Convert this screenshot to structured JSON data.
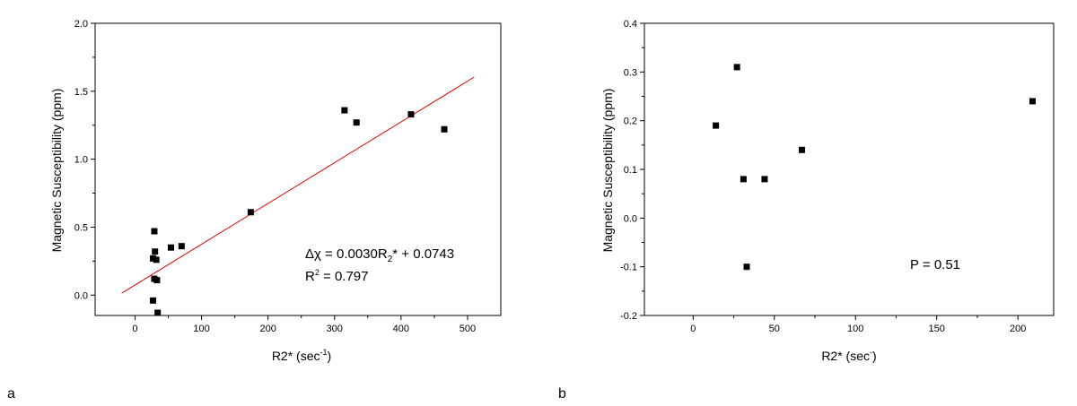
{
  "chart_data": [
    {
      "type": "scatter",
      "panel_label": "a",
      "xlabel_main": "R2* (sec",
      "xlabel_sup": "-1",
      "xlabel_end": ")",
      "ylabel": "Magnetic Susceptibility (ppm)",
      "xlim": [
        -60,
        550
      ],
      "ylim": [
        -0.15,
        2.0
      ],
      "xticks": [
        0,
        100,
        200,
        300,
        400,
        500
      ],
      "yticks": [
        0.0,
        0.5,
        1.0,
        1.5,
        2.0
      ],
      "ytick_labels": [
        "0.0",
        "0.5",
        "1.0",
        "1.5",
        "2.0"
      ],
      "points": [
        {
          "x": 29,
          "y": 0.47
        },
        {
          "x": 27,
          "y": 0.27
        },
        {
          "x": 30,
          "y": 0.32
        },
        {
          "x": 32,
          "y": 0.26
        },
        {
          "x": 29,
          "y": 0.12
        },
        {
          "x": 33,
          "y": 0.11
        },
        {
          "x": 27,
          "y": -0.04
        },
        {
          "x": 34,
          "y": -0.13
        },
        {
          "x": 54,
          "y": 0.35
        },
        {
          "x": 70,
          "y": 0.36
        },
        {
          "x": 174,
          "y": 0.61
        },
        {
          "x": 315,
          "y": 1.36
        },
        {
          "x": 333,
          "y": 1.27
        },
        {
          "x": 415,
          "y": 1.33
        },
        {
          "x": 465,
          "y": 1.22
        }
      ],
      "fit": {
        "slope": 0.003,
        "intercept": 0.0743,
        "x_range": [
          -20,
          510
        ],
        "color": "#e00000"
      },
      "equation_prefix": "Δχ = 0.0030R",
      "equation_sub": "2",
      "equation_suffix": "* + 0.0743",
      "r2_prefix": "R",
      "r2_sup": "2",
      "r2_value": " = 0.797"
    },
    {
      "type": "scatter",
      "panel_label": "b",
      "xlabel_main": "R2* (sec",
      "xlabel_sup": "-",
      "xlabel_end": ")",
      "ylabel": "Magnetic Susceptibility (ppm)",
      "xlim": [
        -30,
        222
      ],
      "ylim": [
        -0.2,
        0.4
      ],
      "xticks": [
        0,
        50,
        100,
        150,
        200
      ],
      "yticks": [
        -0.2,
        -0.1,
        0.0,
        0.1,
        0.2,
        0.3,
        0.4
      ],
      "ytick_labels": [
        "-0.2",
        "-0.1",
        "0.0",
        "0.1",
        "0.2",
        "0.3",
        "0.4"
      ],
      "points": [
        {
          "x": 14,
          "y": 0.19
        },
        {
          "x": 27,
          "y": 0.31
        },
        {
          "x": 31,
          "y": 0.08
        },
        {
          "x": 44,
          "y": 0.08
        },
        {
          "x": 67,
          "y": 0.14
        },
        {
          "x": 33,
          "y": -0.1
        },
        {
          "x": 209,
          "y": 0.24
        }
      ],
      "annotation": "P = 0.51"
    }
  ]
}
